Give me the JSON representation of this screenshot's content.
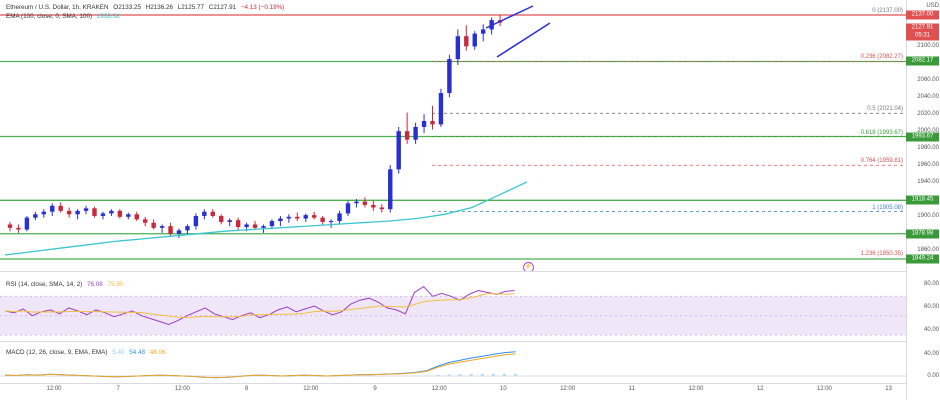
{
  "header": {
    "symbol": "Ethereum / U.S. Dollar, 1h, KRAKEN",
    "open": "O2133.25",
    "high": "H2136.26",
    "low": "L2125.77",
    "close": "C2127.91",
    "change": "−4.13 (−0.19%)"
  },
  "ema_label": "EMA (100, close, 0, SMA, 100)",
  "ema_value": "1938.38",
  "rsi_label": "RSI (14, close, SMA, 14, 2)",
  "rsi_value": "76.08",
  "rsi_value2": "75.95",
  "macd_label": "MACD (12, 26, close, 9, EMA, EMA)",
  "macd_values": [
    "5.40",
    "54.48",
    "48.06"
  ],
  "fib_labels": [
    {
      "text": "0 (2137.00)",
      "price": 2137.0,
      "color": "#7b7b7b"
    },
    {
      "text": "0.236 (2082.27)",
      "price": 2082.27,
      "color": "#e05050"
    },
    {
      "text": "0.5 (2021.04)",
      "price": 2021.04,
      "color": "#7b7b7b"
    },
    {
      "text": "0.618 (1993.67)",
      "price": 1993.67,
      "color": "#3a9a3a"
    },
    {
      "text": "0.764 (1959.81)",
      "price": 1959.81,
      "color": "#e05050"
    },
    {
      "text": "1 (1905.08)",
      "price": 1905.08,
      "color": "#3a7fd0"
    },
    {
      "text": "1.236 (1850.35)",
      "price": 1850.35,
      "color": "#e05050"
    }
  ],
  "price_axis": [
    "2100.00",
    "2080.00",
    "2060.00",
    "2040.00",
    "2020.00",
    "2000.00",
    "1980.00",
    "1960.00",
    "1940.00",
    "1920.00",
    "1900.00",
    "1880.00",
    "1860.00"
  ],
  "price_tags": [
    {
      "text": "2137.00",
      "price": 2137.0,
      "color": "#e05050"
    },
    {
      "text": "2127.91",
      "price": 2127.91,
      "color": "#e05050"
    },
    {
      "text": "2082.17",
      "price": 2082.17,
      "color": "#3a9a3a"
    },
    {
      "text": "1993.67",
      "price": 1993.67,
      "color": "#3a9a3a"
    },
    {
      "text": "1918.45",
      "price": 1918.45,
      "color": "#3a9a3a"
    },
    {
      "text": "1878.98",
      "price": 1878.98,
      "color": "#3a9a3a"
    },
    {
      "text": "1849.24",
      "price": 1849.24,
      "color": "#3a9a3a"
    }
  ],
  "price_tag_sub": "05:31",
  "rsi_axis": [
    "80.00",
    "60.00",
    "40.00"
  ],
  "macd_axis": [
    "40.00",
    "0.00"
  ],
  "time_axis": [
    "12:00",
    "7",
    "12:00",
    "8",
    "12:00",
    "9",
    "12:00",
    "10",
    "12:00",
    "11",
    "12:00",
    "12",
    "12:00",
    "13"
  ],
  "currency": "USD",
  "support_lines": [
    2137.0,
    2082.17,
    1993.67,
    1918.45,
    1878.98,
    1849.24
  ],
  "colors": {
    "up": "#2a2fd0",
    "down": "#c8283c",
    "ema": "#3cc6d0",
    "green": "#4caf50",
    "red": "#e05050",
    "rsi": "#9b3fc4",
    "rsi_sma": "#f0c040",
    "macd": "#2f8ef0",
    "signal": "#f5a623"
  },
  "chart_data": {
    "type": "candlestick",
    "title": "Ethereum / U.S. Dollar, 1h, KRAKEN",
    "ylim": [
      1840,
      2150
    ],
    "candles": [
      [
        1890,
        1893,
        1882,
        1886
      ],
      [
        1886,
        1890,
        1880,
        1884
      ],
      [
        1884,
        1900,
        1882,
        1898
      ],
      [
        1898,
        1905,
        1895,
        1902
      ],
      [
        1902,
        1908,
        1898,
        1905
      ],
      [
        1905,
        1915,
        1900,
        1912
      ],
      [
        1912,
        1916,
        1904,
        1906
      ],
      [
        1906,
        1910,
        1898,
        1902
      ],
      [
        1902,
        1908,
        1896,
        1906
      ],
      [
        1906,
        1912,
        1902,
        1909
      ],
      [
        1909,
        1911,
        1898,
        1900
      ],
      [
        1900,
        1905,
        1896,
        1903
      ],
      [
        1903,
        1908,
        1900,
        1906
      ],
      [
        1906,
        1908,
        1897,
        1899
      ],
      [
        1899,
        1904,
        1896,
        1902
      ],
      [
        1902,
        1905,
        1894,
        1896
      ],
      [
        1896,
        1899,
        1888,
        1892
      ],
      [
        1892,
        1896,
        1884,
        1886
      ],
      [
        1886,
        1890,
        1880,
        1888
      ],
      [
        1888,
        1892,
        1876,
        1879
      ],
      [
        1879,
        1885,
        1874,
        1883
      ],
      [
        1883,
        1890,
        1878,
        1888
      ],
      [
        1888,
        1903,
        1884,
        1900
      ],
      [
        1900,
        1908,
        1896,
        1905
      ],
      [
        1905,
        1908,
        1898,
        1900
      ],
      [
        1900,
        1902,
        1890,
        1893
      ],
      [
        1893,
        1897,
        1888,
        1895
      ],
      [
        1895,
        1898,
        1884,
        1887
      ],
      [
        1887,
        1892,
        1882,
        1890
      ],
      [
        1890,
        1894,
        1884,
        1886
      ],
      [
        1886,
        1890,
        1880,
        1888
      ],
      [
        1888,
        1896,
        1885,
        1894
      ],
      [
        1894,
        1900,
        1888,
        1897
      ],
      [
        1897,
        1902,
        1892,
        1899
      ],
      [
        1899,
        1904,
        1894,
        1897
      ],
      [
        1897,
        1903,
        1893,
        1901
      ],
      [
        1901,
        1905,
        1896,
        1898
      ],
      [
        1898,
        1900,
        1890,
        1893
      ],
      [
        1893,
        1896,
        1886,
        1894
      ],
      [
        1894,
        1906,
        1891,
        1903
      ],
      [
        1903,
        1918,
        1900,
        1915
      ],
      [
        1915,
        1920,
        1910,
        1917
      ],
      [
        1917,
        1922,
        1910,
        1913
      ],
      [
        1913,
        1918,
        1906,
        1910
      ],
      [
        1910,
        1914,
        1904,
        1908
      ],
      [
        1908,
        1960,
        1904,
        1955
      ],
      [
        1955,
        2005,
        1950,
        2000
      ],
      [
        2000,
        2022,
        1985,
        1990
      ],
      [
        1990,
        2010,
        1985,
        2005
      ],
      [
        2005,
        2020,
        1998,
        2012
      ],
      [
        2012,
        2030,
        2002,
        2008
      ],
      [
        2008,
        2050,
        2005,
        2045
      ],
      [
        2045,
        2090,
        2040,
        2085
      ],
      [
        2085,
        2120,
        2078,
        2112
      ],
      [
        2112,
        2125,
        2095,
        2100
      ],
      [
        2100,
        2118,
        2096,
        2115
      ],
      [
        2115,
        2126,
        2106,
        2120
      ],
      [
        2120,
        2134,
        2114,
        2131
      ],
      [
        2131,
        2137,
        2124,
        2128
      ]
    ],
    "ema100": [
      1854,
      1858,
      1862,
      1866,
      1870,
      1873,
      1876,
      1879,
      1882,
      1884,
      1886,
      1888,
      1890,
      1892,
      1894,
      1897,
      1902,
      1910,
      1925,
      1940
    ]
  }
}
